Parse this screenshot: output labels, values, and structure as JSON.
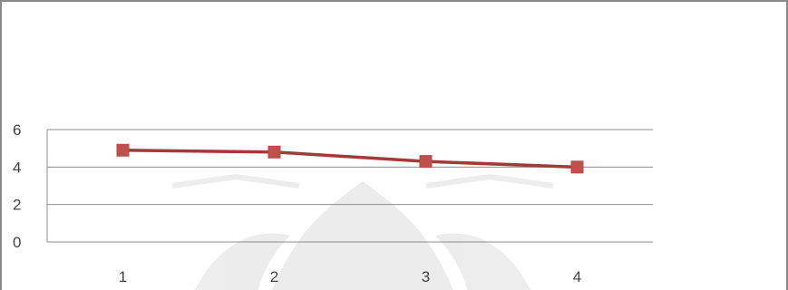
{
  "chart_data": {
    "type": "line",
    "x": [
      1,
      2,
      3,
      4
    ],
    "categories": [
      "1",
      "2",
      "3",
      "4"
    ],
    "series": [
      {
        "values": [
          4.9,
          4.8,
          4.3,
          4.0
        ],
        "color": "#a33a38",
        "marker": "square",
        "marker_color": "#c0504d"
      }
    ],
    "ylim": [
      0,
      6
    ],
    "yticks": [
      "0",
      "2",
      "4",
      "6"
    ],
    "grid": true,
    "legend": "none",
    "title": "",
    "xlabel": "",
    "ylabel": ""
  }
}
